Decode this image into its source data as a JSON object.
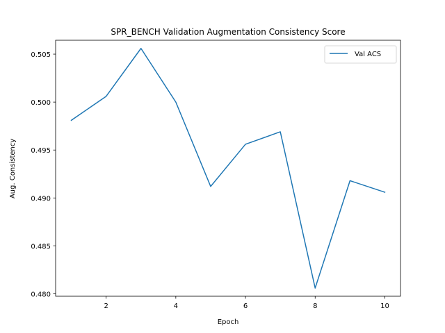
{
  "chart_data": {
    "type": "line",
    "title": "SPR_BENCH Validation Augmentation Consistency Score",
    "xlabel": "Epoch",
    "ylabel": "Aug. Consistency",
    "x": [
      1,
      2,
      3,
      4,
      5,
      6,
      7,
      8,
      9,
      10
    ],
    "series": [
      {
        "name": "Val ACS",
        "color": "#1f77b4",
        "values": [
          0.4981,
          0.5006,
          0.5056,
          0.5,
          0.4912,
          0.4956,
          0.4969,
          0.4806,
          0.4918,
          0.4906
        ]
      }
    ],
    "xlim": [
      0.55,
      10.45
    ],
    "ylim": [
      0.47975,
      0.50645
    ],
    "xticks": [
      2,
      4,
      6,
      8,
      10
    ],
    "xtick_labels": [
      "2",
      "4",
      "6",
      "8",
      "10"
    ],
    "yticks": [
      0.48,
      0.485,
      0.49,
      0.495,
      0.5,
      0.505
    ],
    "ytick_labels": [
      "0.480",
      "0.485",
      "0.490",
      "0.495",
      "0.500",
      "0.505"
    ],
    "grid": false,
    "legend_position": "top-right"
  }
}
